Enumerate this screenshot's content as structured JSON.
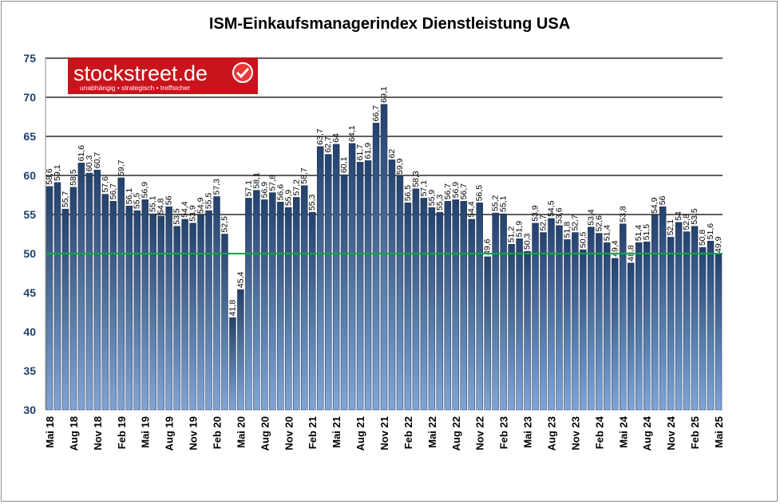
{
  "logo": {
    "name": "stockstreet.de",
    "tagline": "unabhängig • strategisch • treffsicher"
  },
  "colors": {
    "bar_top": "#24416a",
    "bar_bottom": "#7fa6d6",
    "reference_line": "#1aa24a",
    "logo_bg": "#c8141c",
    "axis_labels": "#1f3f6e"
  },
  "chart_data": {
    "type": "bar",
    "title": "ISM-Einkaufsmanagerindex Dienstleistung USA",
    "xlabel": "",
    "ylabel": "",
    "ylim": [
      30,
      75
    ],
    "yticks": [
      30,
      35,
      40,
      45,
      50,
      55,
      60,
      65,
      70,
      75
    ],
    "grid": true,
    "reference_line": 50,
    "x_tick_labels": [
      "Mai 18",
      "Aug 18",
      "Nov 18",
      "Feb 19",
      "Mai 19",
      "Aug 19",
      "Nov 19",
      "Feb 20",
      "Mai 20",
      "Aug 20",
      "Nov 20",
      "Feb 21",
      "Mai 21",
      "Aug 21",
      "Nov 21",
      "Feb 22",
      "Mai 22",
      "Aug 22",
      "Nov 22",
      "Feb 23",
      "Mai 23",
      "Aug 23",
      "Nov 23",
      "Feb 24",
      "Mai 24",
      "Aug 24",
      "Nov 24",
      "Feb 25",
      "Mai 25"
    ],
    "x_tick_every": 3,
    "values": [
      58.6,
      59.1,
      55.7,
      58.5,
      61.6,
      60.3,
      60.7,
      57.6,
      56.7,
      59.7,
      56.1,
      55.5,
      56.9,
      55.1,
      54.8,
      56,
      53.5,
      54.4,
      53.9,
      54.9,
      55.5,
      57.3,
      52.5,
      41.8,
      45.4,
      57.1,
      58.1,
      56.9,
      57.8,
      56.6,
      55.9,
      57.2,
      58.7,
      55.3,
      63.7,
      62.7,
      64,
      60.1,
      64.1,
      61.7,
      61.9,
      66.7,
      69.1,
      62,
      59.9,
      56.5,
      58.3,
      57.1,
      55.9,
      55.3,
      56.7,
      56.9,
      56.7,
      54.4,
      56.5,
      49.6,
      55.2,
      55.1,
      51.2,
      51.9,
      50.3,
      53.9,
      52.7,
      54.5,
      53.6,
      51.8,
      52.7,
      50.5,
      53.4,
      52.6,
      51.4,
      49.4,
      53.8,
      48.8,
      51.4,
      51.5,
      54.9,
      56,
      52.1,
      54,
      52.8,
      53.5,
      50.8,
      51.6,
      49.9
    ]
  }
}
